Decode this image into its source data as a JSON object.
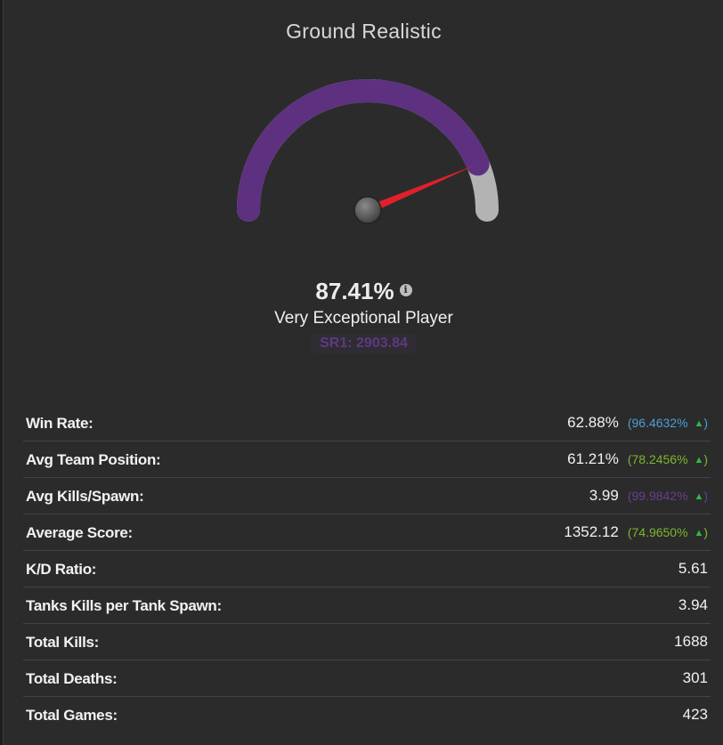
{
  "title": "Ground Realistic",
  "gauge": {
    "level_percent": 87.41,
    "fill_color": "#5d317f",
    "track_color": "#b3b3b3",
    "needle_color": "#e0202a"
  },
  "score": {
    "percent_text": "87.41%",
    "info_icon": "i",
    "rank_label": "Very Exceptional Player",
    "sr_text": "SR1: 2903.84"
  },
  "stats": [
    {
      "label": "Win Rate:",
      "value": "62.88%",
      "percentile": "(96.4632% ",
      "arrow": "▲)",
      "color": "#4b9fd5"
    },
    {
      "label": "Avg Team Position:",
      "value": "61.21%",
      "percentile": "(78.2456% ",
      "arrow": "▲)",
      "color": "#7db52f"
    },
    {
      "label": "Avg Kills/Spawn:",
      "value": "3.99",
      "percentile": "(99.9842% ",
      "arrow": "▲)",
      "color": "#6a3d91"
    },
    {
      "label": "Average Score:",
      "value": "1352.12",
      "percentile": "(74.9650% ",
      "arrow": "▲)",
      "color": "#7db52f"
    },
    {
      "label": "K/D Ratio:",
      "value": "5.61"
    },
    {
      "label": "Tanks Kills per Tank Spawn:",
      "value": "3.94"
    },
    {
      "label": "Total Kills:",
      "value": "1688"
    },
    {
      "label": "Total Deaths:",
      "value": "301"
    },
    {
      "label": "Total Games:",
      "value": "423"
    }
  ],
  "arrow_color": "#2fb84a"
}
